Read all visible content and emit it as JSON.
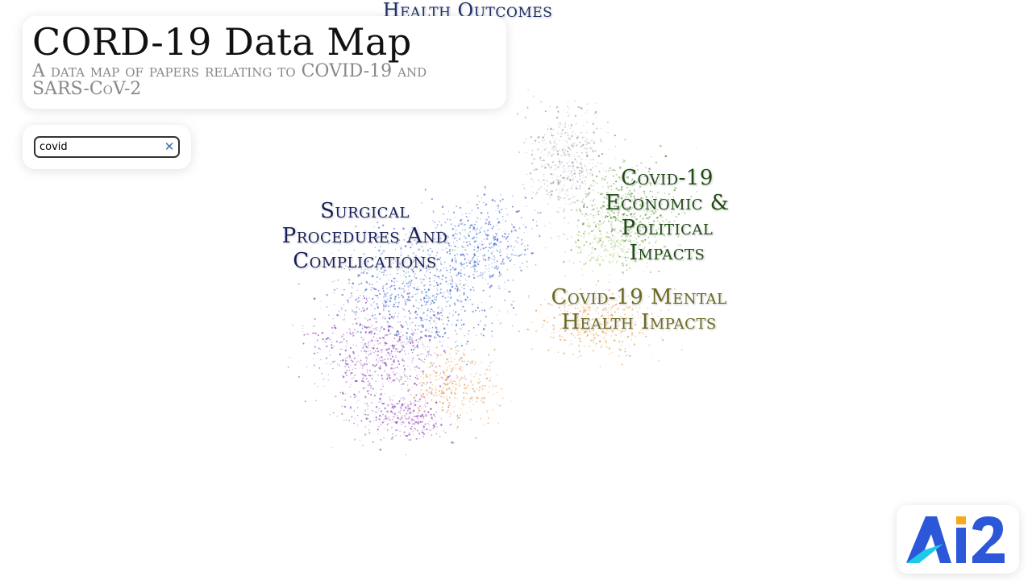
{
  "app": {
    "title": "CORD-19 Data Map",
    "subtitle": "A data map of papers relating to COVID-19 and SARS-CoV-2"
  },
  "search": {
    "value": "covid",
    "clear_icon": "close-icon"
  },
  "map_labels": [
    {
      "text": "Health Outcomes",
      "color": "#1f2f6b"
    },
    {
      "text": "Surgical Procedures And Complications",
      "color": "#16205a"
    },
    {
      "text": "Covid-19 Economic & Political Impacts",
      "color": "#1f4a14"
    },
    {
      "text": "Covid-19 Mental Health Impacts",
      "color": "#6b6a20"
    }
  ],
  "logo": {
    "name": "ai2-logo",
    "text": "AI2",
    "colors": {
      "primary": "#2b57d8",
      "accent": "#f6a91b",
      "cyan": "#1ec9e8"
    }
  },
  "colors": {
    "points_blue": "#3b63c9",
    "points_purple": "#8a3fb8",
    "points_green": "#4f8a2c",
    "points_lime": "#b7d98a",
    "points_orange": "#e79a52",
    "points_gray": "#9aa0ab"
  }
}
